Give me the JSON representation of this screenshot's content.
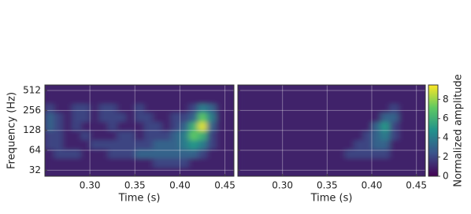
{
  "chart_data": [
    {
      "type": "heatmap",
      "xlabel": "Time (s)",
      "ylabel": "Frequency (Hz)",
      "xlim": [
        0.25,
        0.46
      ],
      "ylim": [
        26,
        620
      ],
      "log_y": true,
      "grid": true,
      "ytick_labels": true,
      "xticks": [
        {
          "value": 0.3,
          "label": "0.30"
        },
        {
          "value": 0.35,
          "label": "0.35"
        },
        {
          "value": 0.4,
          "label": "0.40"
        },
        {
          "value": 0.45,
          "label": "0.45"
        }
      ],
      "yticks": [
        32,
        64,
        128,
        256,
        512
      ],
      "x_bins": [
        0.25,
        0.26,
        0.27,
        0.28,
        0.29,
        0.3,
        0.31,
        0.32,
        0.33,
        0.34,
        0.35,
        0.36,
        0.37,
        0.38,
        0.39,
        0.4,
        0.41,
        0.42,
        0.43,
        0.44,
        0.45,
        0.46
      ],
      "y_bins": [
        26,
        35.7,
        49,
        67.3,
        92.4,
        126.9,
        174,
        239,
        328,
        451,
        620
      ],
      "z": [
        [
          1,
          1,
          1,
          1,
          1,
          1,
          1,
          1,
          1,
          1,
          1,
          1,
          1,
          1,
          1,
          1,
          1,
          1,
          1,
          1,
          1
        ],
        [
          1,
          1,
          1,
          1,
          1,
          1,
          1,
          1,
          1,
          1,
          1,
          1,
          2,
          2,
          2,
          2,
          1,
          1,
          1,
          1,
          1
        ],
        [
          1,
          2,
          2,
          2,
          1,
          1,
          1,
          2,
          2,
          2,
          3,
          3,
          3,
          3,
          3,
          3,
          3,
          2,
          1,
          1,
          1
        ],
        [
          2,
          2,
          1,
          1,
          1,
          2,
          2,
          2,
          2,
          2,
          2,
          2,
          3,
          3,
          3,
          4,
          5,
          4,
          2,
          1,
          1
        ],
        [
          2,
          2,
          1,
          1,
          2,
          1,
          1,
          1,
          2,
          2,
          1,
          2,
          2,
          2,
          3,
          4,
          7,
          6,
          2,
          1,
          1
        ],
        [
          3,
          2,
          1,
          2,
          1,
          1,
          1,
          2,
          1,
          1,
          1,
          2,
          2,
          1,
          2,
          3,
          6,
          9,
          3,
          1,
          1
        ],
        [
          3,
          2,
          1,
          2,
          2,
          1,
          2,
          2,
          2,
          1,
          2,
          2,
          1,
          1,
          2,
          2,
          3,
          7,
          4,
          1,
          1
        ],
        [
          2,
          1,
          1,
          2,
          2,
          1,
          2,
          2,
          1,
          1,
          2,
          1,
          1,
          1,
          1,
          1,
          2,
          4,
          3,
          1,
          1
        ],
        [
          1,
          1,
          1,
          1,
          1,
          1,
          1,
          1,
          1,
          1,
          1,
          1,
          1,
          1,
          1,
          1,
          1,
          1,
          1,
          1,
          1
        ],
        [
          1,
          1,
          1,
          1,
          1,
          1,
          1,
          1,
          1,
          1,
          1,
          1,
          1,
          1,
          1,
          1,
          1,
          1,
          1,
          1,
          1
        ]
      ]
    },
    {
      "type": "heatmap",
      "xlabel": "Time (s)",
      "xlim": [
        0.25,
        0.46
      ],
      "ylim": [
        26,
        620
      ],
      "log_y": true,
      "grid": true,
      "ytick_labels": false,
      "xticks": [
        {
          "value": 0.3,
          "label": "0.30"
        },
        {
          "value": 0.35,
          "label": "0.35"
        },
        {
          "value": 0.4,
          "label": "0.40"
        },
        {
          "value": 0.45,
          "label": "0.45"
        }
      ],
      "yticks": [
        32,
        64,
        128,
        256,
        512
      ],
      "x_bins": [
        0.25,
        0.26,
        0.27,
        0.28,
        0.29,
        0.3,
        0.31,
        0.32,
        0.33,
        0.34,
        0.35,
        0.36,
        0.37,
        0.38,
        0.39,
        0.4,
        0.41,
        0.42,
        0.43,
        0.44,
        0.45,
        0.46
      ],
      "y_bins": [
        26,
        35.7,
        49,
        67.3,
        92.4,
        126.9,
        174,
        239,
        328,
        451,
        620
      ],
      "z": [
        [
          1,
          1,
          1,
          1,
          1,
          1,
          1,
          1,
          1,
          1,
          1,
          1,
          1,
          1,
          1,
          1,
          1,
          1,
          1,
          1,
          1
        ],
        [
          1,
          1,
          1,
          1,
          1,
          1,
          1,
          1,
          1,
          1,
          1,
          1,
          1,
          1,
          1,
          1,
          1,
          1,
          1,
          1,
          1
        ],
        [
          1,
          1,
          1,
          1,
          1,
          1,
          1,
          1,
          1,
          1,
          1,
          1,
          2,
          2,
          2,
          2,
          2,
          1,
          1,
          1,
          1
        ],
        [
          1,
          1,
          1,
          1,
          1,
          1,
          1,
          1,
          1,
          1,
          1,
          1,
          1,
          2,
          2,
          3,
          3,
          1,
          1,
          1,
          1
        ],
        [
          1,
          1,
          1,
          1,
          1,
          1,
          1,
          1,
          1,
          1,
          1,
          1,
          1,
          1,
          2,
          3,
          4,
          2,
          1,
          1,
          1
        ],
        [
          1,
          1,
          1,
          1,
          1,
          1,
          1,
          1,
          1,
          1,
          1,
          1,
          1,
          1,
          1,
          3,
          5,
          2,
          1,
          1,
          1
        ],
        [
          1,
          1,
          1,
          1,
          1,
          1,
          1,
          1,
          1,
          1,
          1,
          1,
          1,
          1,
          1,
          1,
          3,
          3,
          1,
          1,
          1
        ],
        [
          1,
          1,
          1,
          1,
          1,
          1,
          1,
          1,
          1,
          1,
          1,
          1,
          1,
          1,
          1,
          1,
          1,
          2,
          1,
          1,
          1
        ],
        [
          1,
          1,
          1,
          1,
          1,
          1,
          1,
          1,
          1,
          1,
          1,
          1,
          1,
          1,
          1,
          1,
          1,
          1,
          1,
          1,
          1
        ],
        [
          1,
          1,
          1,
          1,
          1,
          1,
          1,
          1,
          1,
          1,
          1,
          1,
          1,
          1,
          1,
          1,
          1,
          1,
          1,
          1,
          1
        ]
      ]
    }
  ],
  "colorbar": {
    "label": "Normalized amplitude",
    "lim": [
      0,
      9.5
    ],
    "ticks": [
      0,
      2,
      4,
      6,
      8
    ],
    "colormap": [
      "#440154",
      "#3b528b",
      "#21918c",
      "#5ec962",
      "#fde725"
    ]
  }
}
